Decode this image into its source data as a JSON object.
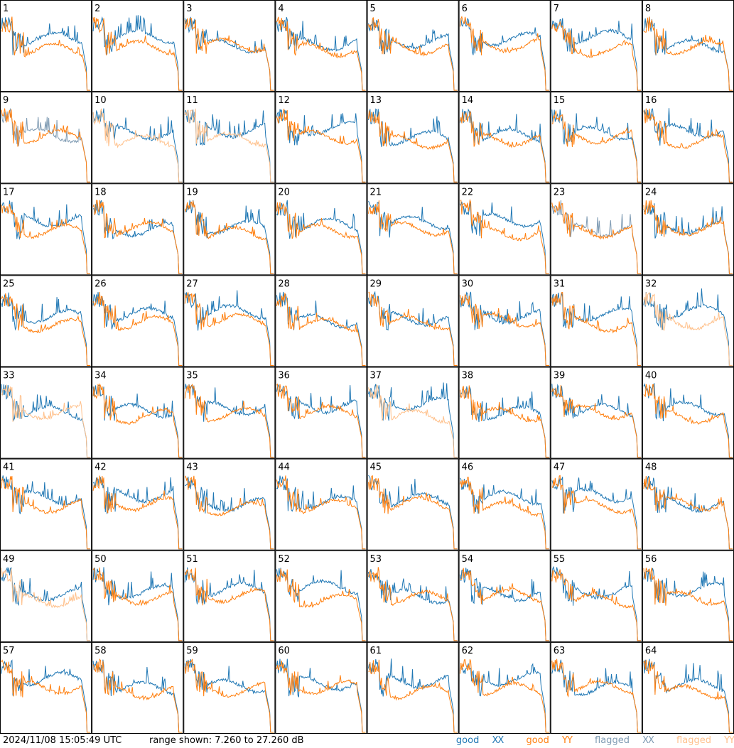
{
  "chart_data": {
    "type": "line",
    "panels": [
      "1",
      "2",
      "3",
      "4",
      "5",
      "6",
      "7",
      "8",
      "9",
      "10",
      "11",
      "12",
      "13",
      "14",
      "15",
      "16",
      "17",
      "18",
      "19",
      "20",
      "21",
      "22",
      "23",
      "24",
      "25",
      "26",
      "27",
      "28",
      "29",
      "30",
      "31",
      "32",
      "33",
      "34",
      "35",
      "36",
      "37",
      "38",
      "39",
      "40",
      "41",
      "42",
      "43",
      "44",
      "45",
      "46",
      "47",
      "48",
      "49",
      "50",
      "51",
      "52",
      "53",
      "54",
      "55",
      "56",
      "57",
      "58",
      "59",
      "60",
      "61",
      "62",
      "63",
      "64"
    ],
    "ylim": [
      7.26,
      27.26
    ],
    "series": [
      {
        "name": "good XX",
        "color": "#1f77b4"
      },
      {
        "name": "good YY",
        "color": "#ff7f0e"
      },
      {
        "name": "flagged XX",
        "color": "#7f9bb3"
      },
      {
        "name": "flagged YY",
        "color": "#ffc18c"
      }
    ],
    "flagged_xx_panels": [
      "9",
      "23"
    ],
    "flagged_yy_panels": [
      "10",
      "11",
      "32",
      "33",
      "37",
      "49"
    ]
  },
  "footer": {
    "timestamp": "2024/11/08 15:05:49 UTC",
    "range": "range shown: 7.260 to 27.260 dB",
    "legend": {
      "good": "good",
      "flagged": "flagged",
      "xx": "XX",
      "yy": "YY"
    }
  }
}
